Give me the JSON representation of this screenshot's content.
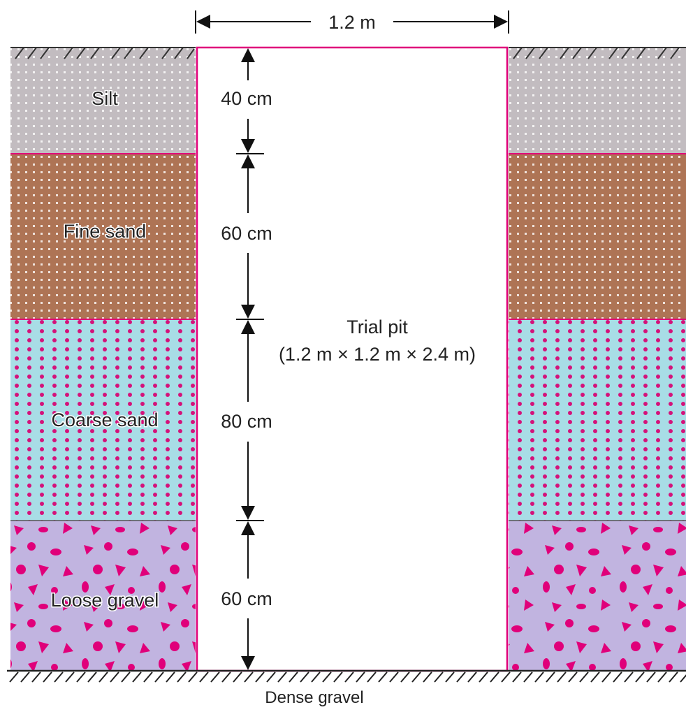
{
  "width_label": "1.2 m",
  "pit": {
    "title": "Trial pit",
    "dimensions": "(1.2 m × 1.2 m × 2.4 m)"
  },
  "layers": [
    {
      "name": "Silt",
      "thickness": "40 cm",
      "color": "#c2bcc0",
      "pattern": "dots"
    },
    {
      "name": "Fine sand",
      "thickness": "60 cm",
      "color": "#ae7455",
      "pattern": "dots"
    },
    {
      "name": "Coarse sand",
      "thickness": "80 cm",
      "color": "#a8dde6",
      "pattern": "magenta-dots"
    },
    {
      "name": "Loose gravel",
      "thickness": "60 cm",
      "color": "#c1b4e0",
      "pattern": "gravel"
    }
  ],
  "bottom_label": "Dense gravel",
  "colors": {
    "pit_outline": "#e0007a",
    "gravel_fill": "#e0007a",
    "boundary": "#e0007a"
  }
}
